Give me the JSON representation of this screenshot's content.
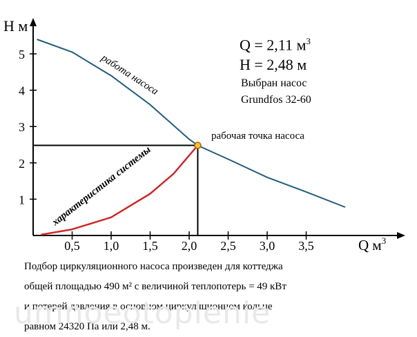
{
  "chart_data": {
    "type": "line",
    "xlabel": "Q м",
    "xlabel_sup": "3",
    "ylabel": "H м",
    "xlim": [
      0,
      4.3
    ],
    "ylim": [
      0,
      5.5
    ],
    "x_ticks": [
      "0,5",
      "1,0",
      "1,5",
      "2,0",
      "2,5",
      "3,0",
      "3,5"
    ],
    "x_tick_values": [
      0.5,
      1.0,
      1.5,
      2.0,
      2.5,
      3.0,
      3.5
    ],
    "y_ticks": [
      "1",
      "2",
      "3",
      "4",
      "5"
    ],
    "y_tick_values": [
      1,
      2,
      3,
      4,
      5
    ],
    "series": [
      {
        "name": "работа насоса",
        "color": "#1f5c7a",
        "x": [
          0.05,
          0.5,
          1.0,
          1.5,
          2.0,
          2.11,
          2.5,
          3.0,
          3.5,
          4.0
        ],
        "y": [
          5.4,
          5.05,
          4.4,
          3.6,
          2.65,
          2.48,
          2.1,
          1.6,
          1.2,
          0.78
        ]
      },
      {
        "name": "характеристика системы",
        "color": "#cc2a2a",
        "x": [
          0.1,
          0.5,
          1.0,
          1.5,
          1.8,
          2.11
        ],
        "y": [
          0.02,
          0.17,
          0.5,
          1.15,
          1.7,
          2.48
        ]
      }
    ],
    "operating_point": {
      "x": 2.11,
      "y": 2.48,
      "label": "рабочая точка насоса"
    }
  },
  "info": {
    "q_line": "Q = 2,11 м",
    "q_sup": "3",
    "h_line": "H = 2,48 м",
    "pump_line1": "Выбран насос",
    "pump_line2": "Grundfos 32-60"
  },
  "caption": {
    "line1": "Подбор циркуляционного насоса произведен для коттеджа",
    "line2": "общей площадью 490 м² с величиной теплопотерь = 49 кВт",
    "line3": "и потерей давления в основном циркуляционном кольце",
    "line4": "равном 24320 Па или 2,48 м."
  },
  "watermark": "umnoeotoplenie"
}
